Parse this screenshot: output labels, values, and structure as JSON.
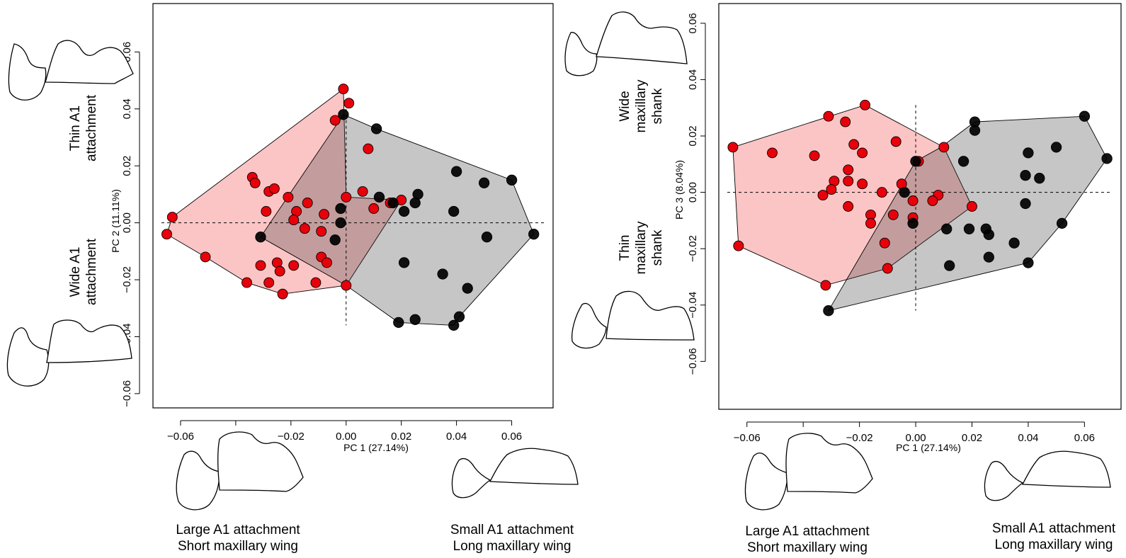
{
  "colors": {
    "groupA": "#e8000b",
    "groupB": "#000000",
    "hullA": "#f9c6c6",
    "hullB": "#c6c6c6",
    "overlap": "#b98484"
  },
  "chart_data": [
    {
      "type": "scatter",
      "xlabel": "PC  1  (27.14%)",
      "ylabel": "PC  2  (11.11%)",
      "xlim": [
        -0.07,
        0.075
      ],
      "ylim": [
        -0.065,
        0.077
      ],
      "xticks": [
        -0.06,
        -0.04,
        -0.02,
        0.0,
        0.02,
        0.04,
        0.06
      ],
      "yticks": [
        -0.06,
        -0.04,
        -0.02,
        0.0,
        0.02,
        0.04,
        0.06
      ],
      "xtick_labels": [
        "−0.06",
        "−0.04",
        "−0.02",
        "0.00",
        "0.02",
        "0.04",
        "0.06"
      ],
      "ytick_labels": [
        "−0.06",
        "−0.04",
        "−0.02",
        "0.00",
        "0.02",
        "0.04",
        "0.06"
      ],
      "descriptors": {
        "left_top": [
          "Thin A1",
          "attachment"
        ],
        "left_bottom": [
          "Wide A1",
          "attachment"
        ],
        "bottom_left": [
          "Large A1 attachment",
          "Short maxillary wing"
        ],
        "bottom_right": [
          "Small A1 attachment",
          "Long maxillary wing"
        ]
      },
      "series": [
        {
          "color": "#e8000b",
          "hull": [
            [
              -0.065,
              -0.004
            ],
            [
              -0.063,
              0.002
            ],
            [
              -0.001,
              0.047
            ],
            [
              0.0,
              0.009
            ],
            [
              0.02,
              0.008
            ],
            [
              0.0,
              -0.022
            ],
            [
              -0.023,
              -0.025
            ],
            [
              -0.036,
              -0.021
            ],
            [
              -0.051,
              -0.012
            ]
          ],
          "points": [
            [
              -0.065,
              -0.004
            ],
            [
              -0.063,
              0.002
            ],
            [
              -0.051,
              -0.012
            ],
            [
              -0.036,
              -0.021
            ],
            [
              -0.023,
              -0.025
            ],
            [
              -0.001,
              0.047
            ],
            [
              0.001,
              0.042
            ],
            [
              -0.004,
              0.036
            ],
            [
              0.008,
              0.026
            ],
            [
              -0.034,
              0.016
            ],
            [
              -0.033,
              0.014
            ],
            [
              -0.028,
              0.011
            ],
            [
              -0.026,
              0.012
            ],
            [
              -0.021,
              0.009
            ],
            [
              -0.029,
              0.004
            ],
            [
              -0.018,
              0.004
            ],
            [
              -0.014,
              0.007
            ],
            [
              -0.019,
              0.001
            ],
            [
              -0.008,
              0.003
            ],
            [
              -0.015,
              -0.002
            ],
            [
              -0.009,
              -0.003
            ],
            [
              0.006,
              0.011
            ],
            [
              0.0,
              0.009
            ],
            [
              0.01,
              0.005
            ],
            [
              0.016,
              0.007
            ],
            [
              0.02,
              0.008
            ],
            [
              -0.031,
              -0.015
            ],
            [
              -0.025,
              -0.014
            ],
            [
              -0.024,
              -0.017
            ],
            [
              -0.028,
              -0.021
            ],
            [
              -0.019,
              -0.015
            ],
            [
              -0.009,
              -0.012
            ],
            [
              -0.007,
              -0.014
            ],
            [
              -0.011,
              -0.021
            ],
            [
              0.0,
              -0.022
            ]
          ]
        },
        {
          "color": "#000000",
          "hull": [
            [
              -0.031,
              -0.005
            ],
            [
              -0.001,
              0.038
            ],
            [
              0.011,
              0.033
            ],
            [
              0.06,
              0.015
            ],
            [
              0.068,
              -0.004
            ],
            [
              0.041,
              -0.033
            ],
            [
              0.039,
              -0.036
            ],
            [
              0.019,
              -0.035
            ],
            [
              0.0,
              -0.022
            ]
          ],
          "points": [
            [
              -0.031,
              -0.005
            ],
            [
              -0.001,
              0.038
            ],
            [
              0.011,
              0.033
            ],
            [
              0.04,
              0.018
            ],
            [
              0.05,
              0.014
            ],
            [
              0.06,
              0.015
            ],
            [
              0.068,
              -0.004
            ],
            [
              0.051,
              -0.005
            ],
            [
              0.026,
              0.01
            ],
            [
              0.025,
              0.007
            ],
            [
              0.021,
              0.004
            ],
            [
              0.012,
              0.009
            ],
            [
              0.017,
              0.007
            ],
            [
              0.039,
              0.004
            ],
            [
              -0.002,
              0.005
            ],
            [
              -0.002,
              0.0
            ],
            [
              -0.004,
              -0.006
            ],
            [
              0.021,
              -0.014
            ],
            [
              0.035,
              -0.018
            ],
            [
              0.044,
              -0.023
            ],
            [
              0.041,
              -0.033
            ],
            [
              0.039,
              -0.036
            ],
            [
              0.025,
              -0.034
            ],
            [
              0.019,
              -0.035
            ]
          ]
        }
      ]
    },
    {
      "type": "scatter",
      "xlabel": "PC  1  (27.14%)",
      "ylabel": "PC  3  (8.04%)",
      "xlim": [
        -0.07,
        0.073
      ],
      "ylim": [
        -0.077,
        0.067
      ],
      "xticks": [
        -0.06,
        -0.04,
        -0.02,
        0.0,
        0.02,
        0.04,
        0.06
      ],
      "yticks": [
        -0.06,
        -0.04,
        -0.02,
        0.0,
        0.02,
        0.04,
        0.06
      ],
      "xtick_labels": [
        "−0.06",
        "−0.04",
        "−0.02",
        "0.00",
        "0.02",
        "0.04",
        "0.06"
      ],
      "ytick_labels": [
        "−0.06",
        "−0.04",
        "−0.02",
        "0.00",
        "0.02",
        "0.04",
        "0.06"
      ],
      "descriptors": {
        "left_top": [
          "Wide",
          "maxillary",
          "shank"
        ],
        "left_bottom": [
          "Thin",
          "maxillary",
          "shank"
        ],
        "bottom_left": [
          "Large A1 attachment",
          "Short maxillary wing"
        ],
        "bottom_right": [
          "Small A1 attachment",
          "Long maxillary wing"
        ]
      },
      "series": [
        {
          "color": "#e8000b",
          "hull": [
            [
              -0.065,
              0.016
            ],
            [
              -0.018,
              0.031
            ],
            [
              0.01,
              0.016
            ],
            [
              0.02,
              -0.005
            ],
            [
              -0.01,
              -0.027
            ],
            [
              -0.032,
              -0.033
            ],
            [
              -0.063,
              -0.019
            ]
          ],
          "points": [
            [
              -0.065,
              0.016
            ],
            [
              -0.051,
              0.014
            ],
            [
              -0.036,
              0.013
            ],
            [
              -0.031,
              0.027
            ],
            [
              -0.025,
              0.025
            ],
            [
              -0.018,
              0.031
            ],
            [
              -0.007,
              0.018
            ],
            [
              -0.022,
              0.017
            ],
            [
              -0.019,
              0.014
            ],
            [
              -0.024,
              0.008
            ],
            [
              -0.029,
              0.004
            ],
            [
              -0.024,
              0.004
            ],
            [
              -0.019,
              0.003
            ],
            [
              -0.03,
              0.001
            ],
            [
              -0.033,
              -0.001
            ],
            [
              -0.012,
              0.0
            ],
            [
              -0.024,
              -0.005
            ],
            [
              -0.016,
              -0.008
            ],
            [
              -0.016,
              -0.011
            ],
            [
              -0.008,
              -0.008
            ],
            [
              -0.005,
              0.003
            ],
            [
              0.001,
              0.011
            ],
            [
              0.01,
              0.016
            ],
            [
              0.008,
              -0.001
            ],
            [
              0.006,
              -0.003
            ],
            [
              -0.001,
              -0.003
            ],
            [
              -0.001,
              -0.009
            ],
            [
              -0.011,
              -0.018
            ],
            [
              -0.01,
              -0.027
            ],
            [
              0.02,
              -0.005
            ],
            [
              -0.032,
              -0.033
            ],
            [
              -0.063,
              -0.019
            ]
          ]
        },
        {
          "color": "#000000",
          "hull": [
            [
              -0.031,
              -0.042
            ],
            [
              0.0,
              0.011
            ],
            [
              0.009,
              0.016
            ],
            [
              0.021,
              0.025
            ],
            [
              0.06,
              0.027
            ],
            [
              0.068,
              0.012
            ],
            [
              0.052,
              -0.011
            ],
            [
              0.04,
              -0.025
            ]
          ],
          "points": [
            [
              -0.031,
              -0.042
            ],
            [
              0.0,
              0.011
            ],
            [
              0.021,
              0.025
            ],
            [
              0.021,
              0.022
            ],
            [
              0.017,
              0.011
            ],
            [
              0.06,
              0.027
            ],
            [
              0.068,
              0.012
            ],
            [
              0.05,
              0.016
            ],
            [
              0.04,
              0.014
            ],
            [
              0.039,
              0.006
            ],
            [
              0.044,
              0.005
            ],
            [
              0.039,
              -0.004
            ],
            [
              0.052,
              -0.011
            ],
            [
              0.035,
              -0.018
            ],
            [
              0.025,
              -0.013
            ],
            [
              0.026,
              -0.015
            ],
            [
              0.019,
              -0.013
            ],
            [
              0.011,
              -0.013
            ],
            [
              0.012,
              -0.026
            ],
            [
              0.026,
              -0.023
            ],
            [
              0.04,
              -0.025
            ],
            [
              -0.004,
              0.0
            ],
            [
              -0.001,
              -0.011
            ]
          ]
        }
      ]
    }
  ]
}
